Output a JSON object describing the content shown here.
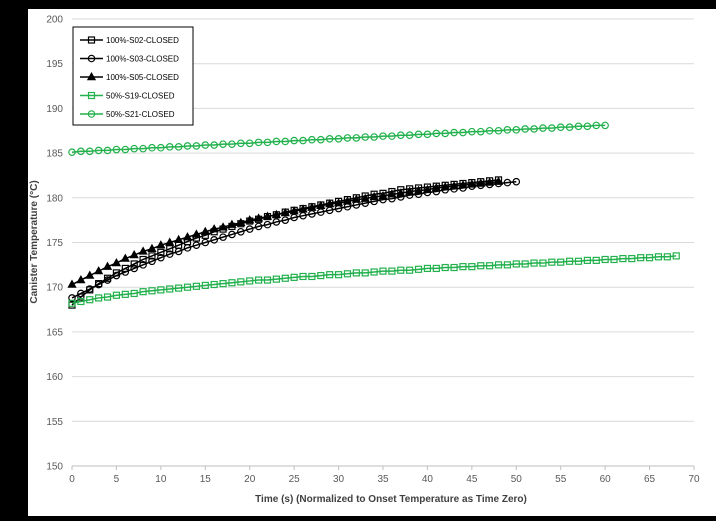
{
  "chart_data": {
    "type": "line",
    "title": "",
    "xlabel": "Time (s) (Normalized to Onset Temperature as Time Zero)",
    "ylabel": "Canister Temperature (°C)",
    "xlim": [
      0,
      70
    ],
    "ylim": [
      150,
      200
    ],
    "x_ticks": [
      "0",
      "5",
      "10",
      "15",
      "20",
      "25",
      "30",
      "35",
      "40",
      "45",
      "50",
      "55",
      "60",
      "65",
      "70"
    ],
    "y_ticks": [
      "150",
      "155",
      "160",
      "165",
      "170",
      "175",
      "180",
      "185",
      "190",
      "195",
      "200"
    ],
    "grid": "horizontal",
    "legend_position": "top-left",
    "series": [
      {
        "name": "100%-S02-CLOSED",
        "color": "#000000",
        "marker": "square",
        "x": [
          0,
          1,
          2,
          3,
          4,
          5,
          6,
          7,
          8,
          9,
          10,
          11,
          12,
          13,
          14,
          15,
          16,
          17,
          18,
          19,
          20,
          21,
          22,
          23,
          24,
          25,
          26,
          27,
          28,
          29,
          30,
          31,
          32,
          33,
          34,
          35,
          36,
          37,
          38,
          39,
          40,
          41,
          42,
          43,
          44,
          45,
          46,
          47,
          48
        ],
        "y": [
          168.0,
          168.9,
          169.7,
          170.4,
          171.0,
          171.6,
          172.1,
          172.6,
          173.1,
          173.5,
          173.9,
          174.3,
          174.7,
          175.1,
          175.5,
          175.8,
          176.2,
          176.5,
          176.8,
          177.1,
          177.4,
          177.6,
          177.9,
          178.1,
          178.4,
          178.6,
          178.8,
          179.0,
          179.2,
          179.4,
          179.6,
          179.8,
          180.0,
          180.2,
          180.4,
          180.5,
          180.7,
          180.9,
          181.0,
          181.1,
          181.2,
          181.3,
          181.4,
          181.5,
          181.6,
          181.7,
          181.8,
          181.9,
          182.0
        ]
      },
      {
        "name": "100%-S03-CLOSED",
        "color": "#000000",
        "marker": "circle",
        "x": [
          0,
          1,
          2,
          3,
          4,
          5,
          6,
          7,
          8,
          9,
          10,
          11,
          12,
          13,
          14,
          15,
          16,
          17,
          18,
          19,
          20,
          21,
          22,
          23,
          24,
          25,
          26,
          27,
          28,
          29,
          30,
          31,
          32,
          33,
          34,
          35,
          36,
          37,
          38,
          39,
          40,
          41,
          42,
          43,
          44,
          45,
          46,
          47,
          48,
          49,
          50
        ],
        "y": [
          168.8,
          169.3,
          169.8,
          170.3,
          170.8,
          171.3,
          171.7,
          172.1,
          172.5,
          172.9,
          173.3,
          173.7,
          174.0,
          174.4,
          174.7,
          175.0,
          175.3,
          175.6,
          175.9,
          176.2,
          176.5,
          176.8,
          177.0,
          177.3,
          177.5,
          177.8,
          178.0,
          178.2,
          178.4,
          178.6,
          178.8,
          179.0,
          179.2,
          179.4,
          179.6,
          179.8,
          179.9,
          180.1,
          180.3,
          180.4,
          180.6,
          180.7,
          180.9,
          181.0,
          181.1,
          181.3,
          181.4,
          181.5,
          181.6,
          181.7,
          181.8
        ]
      },
      {
        "name": "100%-S05-CLOSED",
        "color": "#000000",
        "marker": "triangle",
        "x": [
          0,
          1,
          2,
          3,
          4,
          5,
          6,
          7,
          8,
          9,
          10,
          11,
          12,
          13,
          14,
          15,
          16,
          17,
          18,
          19,
          20,
          21,
          22,
          23,
          24,
          25,
          26,
          27,
          28,
          29,
          30,
          31,
          32,
          33,
          34,
          35,
          36,
          37,
          38,
          39,
          40,
          41,
          42,
          43,
          44,
          45,
          46,
          47,
          48
        ],
        "y": [
          170.3,
          170.8,
          171.3,
          171.8,
          172.3,
          172.7,
          173.2,
          173.6,
          174.0,
          174.3,
          174.7,
          175.0,
          175.3,
          175.6,
          175.9,
          176.2,
          176.5,
          176.7,
          177.0,
          177.2,
          177.5,
          177.7,
          177.9,
          178.1,
          178.3,
          178.5,
          178.7,
          178.9,
          179.1,
          179.3,
          179.4,
          179.6,
          179.8,
          179.9,
          180.1,
          180.2,
          180.4,
          180.5,
          180.7,
          180.8,
          180.9,
          181.1,
          181.2,
          181.3,
          181.4,
          181.5,
          181.6,
          181.7,
          181.8
        ]
      },
      {
        "name": "50%-S19-CLOSED",
        "color": "#22B14C",
        "marker": "square",
        "x": [
          0,
          1,
          2,
          3,
          4,
          5,
          6,
          7,
          8,
          9,
          10,
          11,
          12,
          13,
          14,
          15,
          16,
          17,
          18,
          19,
          20,
          21,
          22,
          23,
          24,
          25,
          26,
          27,
          28,
          29,
          30,
          31,
          32,
          33,
          34,
          35,
          36,
          37,
          38,
          39,
          40,
          41,
          42,
          43,
          44,
          45,
          46,
          47,
          48,
          49,
          50,
          51,
          52,
          53,
          54,
          55,
          56,
          57,
          58,
          59,
          60,
          61,
          62,
          63,
          64,
          65,
          66,
          67,
          68
        ],
        "y": [
          168.2,
          168.4,
          168.6,
          168.8,
          168.9,
          169.1,
          169.2,
          169.3,
          169.5,
          169.6,
          169.7,
          169.8,
          169.9,
          170.0,
          170.1,
          170.2,
          170.3,
          170.4,
          170.5,
          170.6,
          170.7,
          170.8,
          170.8,
          170.9,
          171.0,
          171.1,
          171.2,
          171.2,
          171.3,
          171.4,
          171.4,
          171.5,
          171.6,
          171.6,
          171.7,
          171.8,
          171.8,
          171.9,
          171.9,
          172.0,
          172.1,
          172.1,
          172.2,
          172.2,
          172.3,
          172.3,
          172.4,
          172.4,
          172.5,
          172.5,
          172.6,
          172.6,
          172.7,
          172.7,
          172.8,
          172.8,
          172.9,
          172.9,
          173.0,
          173.0,
          173.1,
          173.1,
          173.2,
          173.2,
          173.3,
          173.3,
          173.4,
          173.4,
          173.5
        ]
      },
      {
        "name": "50%-S21-CLOSED",
        "color": "#22B14C",
        "marker": "circle",
        "x": [
          0,
          1,
          2,
          3,
          4,
          5,
          6,
          7,
          8,
          9,
          10,
          11,
          12,
          13,
          14,
          15,
          16,
          17,
          18,
          19,
          20,
          21,
          22,
          23,
          24,
          25,
          26,
          27,
          28,
          29,
          30,
          31,
          32,
          33,
          34,
          35,
          36,
          37,
          38,
          39,
          40,
          41,
          42,
          43,
          44,
          45,
          46,
          47,
          48,
          49,
          50,
          51,
          52,
          53,
          54,
          55,
          56,
          57,
          58,
          59,
          60
        ],
        "y": [
          185.1,
          185.2,
          185.2,
          185.3,
          185.3,
          185.4,
          185.4,
          185.5,
          185.5,
          185.6,
          185.6,
          185.7,
          185.7,
          185.8,
          185.8,
          185.9,
          185.9,
          186.0,
          186.0,
          186.1,
          186.1,
          186.2,
          186.2,
          186.3,
          186.3,
          186.4,
          186.4,
          186.5,
          186.5,
          186.6,
          186.6,
          186.7,
          186.7,
          186.8,
          186.8,
          186.9,
          186.9,
          187.0,
          187.0,
          187.1,
          187.1,
          187.2,
          187.2,
          187.3,
          187.3,
          187.4,
          187.4,
          187.5,
          187.5,
          187.6,
          187.6,
          187.7,
          187.7,
          187.8,
          187.8,
          187.9,
          187.9,
          188.0,
          188.0,
          188.1,
          188.1
        ]
      }
    ]
  }
}
